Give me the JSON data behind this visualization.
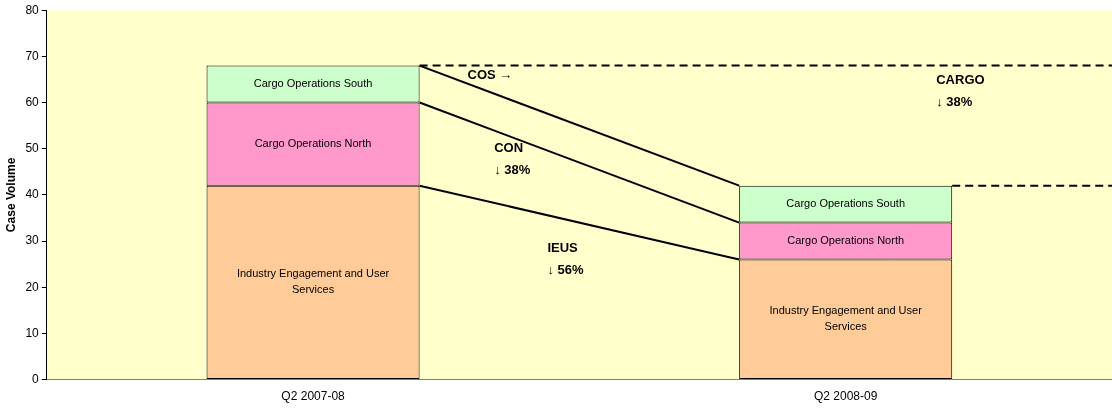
{
  "chart_data": {
    "type": "bar",
    "stacked": true,
    "ylabel": "Case Volume",
    "categories": [
      "Q2 2007-08",
      "Q2 2008-09"
    ],
    "series": [
      {
        "name": "Industry Engagement and User Services",
        "color": "#ffcc99",
        "values": [
          42,
          26
        ]
      },
      {
        "name": "Cargo Operations North",
        "color": "#ff99cc",
        "values": [
          18,
          8
        ]
      },
      {
        "name": "Cargo Operations South",
        "color": "#ccffcc",
        "values": [
          8,
          8
        ]
      }
    ],
    "ylim": [
      0,
      80
    ],
    "yticks": [
      0,
      10,
      20,
      30,
      40,
      50,
      60,
      70,
      80
    ],
    "ref_lines": [
      {
        "axis": "y",
        "value": 68,
        "line_style": "dashed"
      },
      {
        "axis": "y",
        "value": 42,
        "line_style": "dashed"
      }
    ],
    "annotations": [
      "COS →",
      "CON\n↓ 38%",
      "IEUS\n↓ 56%",
      "CARGO\n↓ 38%"
    ],
    "grid": false,
    "legend": false
  }
}
